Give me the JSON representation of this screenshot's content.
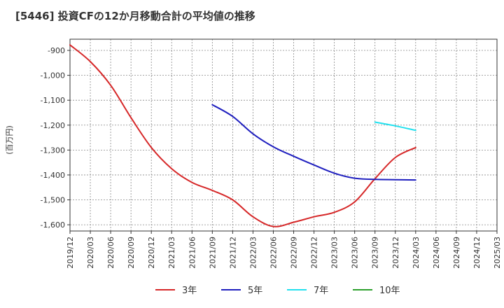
{
  "chart_data": {
    "type": "line",
    "title": "[5446]  投資CFの12か月移動合計の平均値の推移",
    "ylabel": "(百万円)",
    "xlabel": "",
    "ylim": [
      -1625,
      -855
    ],
    "yticks": [
      -900,
      -1000,
      -1100,
      -1200,
      -1300,
      -1400,
      -1500,
      -1600
    ],
    "ytick_labels": [
      "-900",
      "-1,000",
      "-1,100",
      "-1,200",
      "-1,300",
      "-1,400",
      "-1,500",
      "-1,600"
    ],
    "xlim": [
      "2019-12",
      "2025-03"
    ],
    "xticks": [
      "2019/12",
      "2020/03",
      "2020/06",
      "2020/09",
      "2020/12",
      "2021/03",
      "2021/06",
      "2021/09",
      "2021/12",
      "2022/03",
      "2022/06",
      "2022/09",
      "2022/12",
      "2023/03",
      "2023/06",
      "2023/09",
      "2023/12",
      "2024/03",
      "2024/06",
      "2024/09",
      "2024/12",
      "2025/03"
    ],
    "grid": true,
    "legend_position": "bottom",
    "series": [
      {
        "name": "3年",
        "color": "#d62728",
        "x": [
          "2019-12",
          "2020-03",
          "2020-06",
          "2020-09",
          "2020-12",
          "2021-03",
          "2021-06",
          "2021-09",
          "2021-12",
          "2022-03",
          "2022-06",
          "2022-09",
          "2022-12",
          "2023-03",
          "2023-06",
          "2023-09",
          "2023-12",
          "2024-03"
        ],
        "values": [
          -878,
          -945,
          -1040,
          -1170,
          -1290,
          -1375,
          -1430,
          -1462,
          -1500,
          -1568,
          -1607,
          -1590,
          -1568,
          -1550,
          -1508,
          -1415,
          -1330,
          -1290
        ]
      },
      {
        "name": "5年",
        "color": "#1f1fbf",
        "x": [
          "2021-09",
          "2021-12",
          "2022-03",
          "2022-06",
          "2022-09",
          "2022-12",
          "2023-03",
          "2023-06",
          "2023-09",
          "2023-12",
          "2024-03"
        ],
        "values": [
          -1118,
          -1165,
          -1235,
          -1287,
          -1325,
          -1360,
          -1393,
          -1413,
          -1418,
          -1419,
          -1420
        ]
      },
      {
        "name": "7年",
        "color": "#22e0ee",
        "x": [
          "2023-09",
          "2023-12",
          "2024-03"
        ],
        "values": [
          -1188,
          -1203,
          -1221
        ]
      },
      {
        "name": "10年",
        "color": "#2ca02c",
        "x": [],
        "values": []
      }
    ]
  }
}
